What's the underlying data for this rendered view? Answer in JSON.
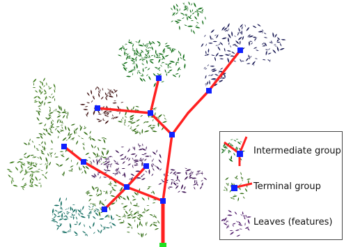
{
  "legend": {
    "items": [
      {
        "label": "Intermediate group",
        "icon": "intermediate-group-icon"
      },
      {
        "label": "Terminal group",
        "icon": "terminal-group-icon"
      },
      {
        "label": "Leaves (features)",
        "icon": "leaves-icon"
      }
    ]
  },
  "colors": {
    "branch": "#ff2020",
    "node": "#1020ff",
    "root": "#20e020",
    "clusters": [
      "#2e6b10",
      "#0a6a10",
      "#1a1a55",
      "#3a0a0a",
      "#3b1052",
      "#0e6a5e",
      "#3a7a18",
      "#4a1466"
    ]
  }
}
